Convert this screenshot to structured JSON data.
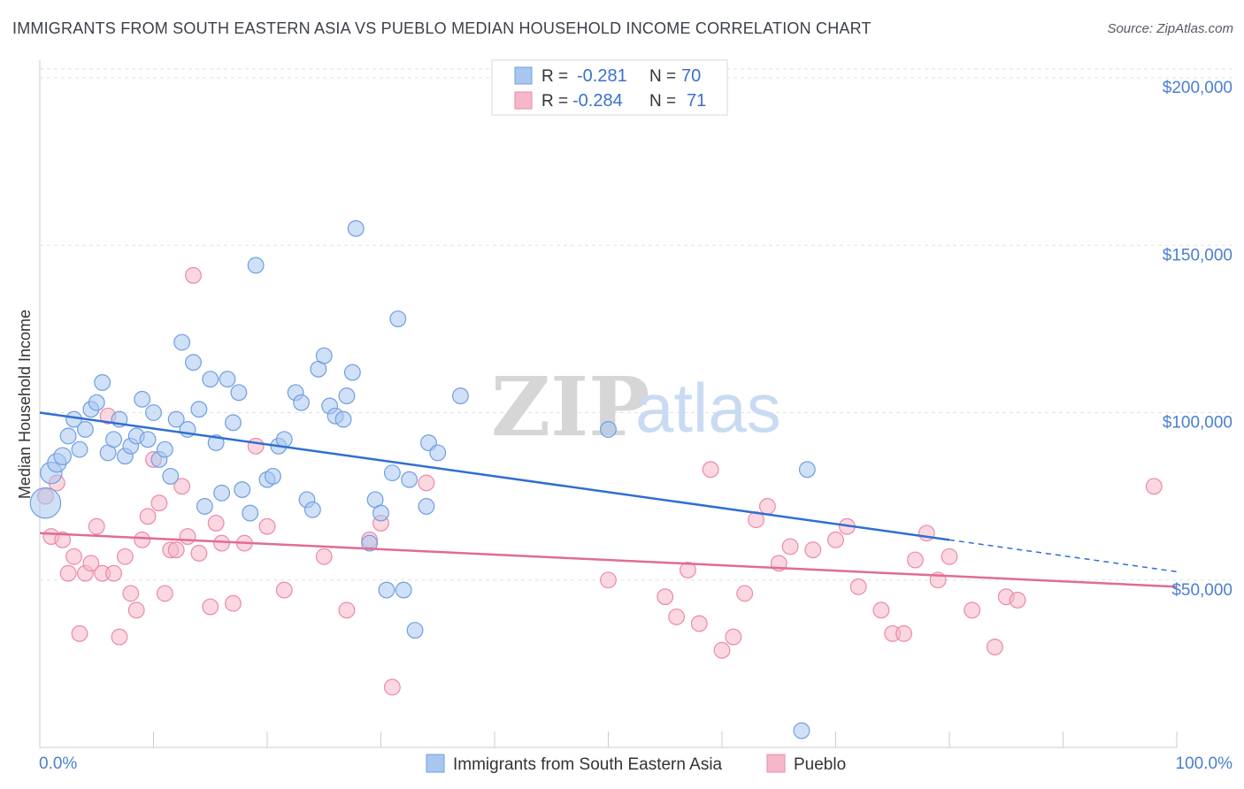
{
  "header": {
    "title": "IMMIGRANTS FROM SOUTH EASTERN ASIA VS PUEBLO MEDIAN HOUSEHOLD INCOME CORRELATION CHART",
    "source": "Source: ZipAtlas.com"
  },
  "watermark": {
    "zip": "ZIP",
    "atlas": "atlas"
  },
  "stats": [
    {
      "r_label": "R =",
      "r_value": "-0.281",
      "n_label": "N =",
      "n_value": "70",
      "color": "#a9c6f0"
    },
    {
      "r_label": "R =",
      "r_value": "-0.284",
      "n_label": "N =",
      "n_value": "71",
      "color": "#f5b7c9"
    }
  ],
  "chart_data": {
    "type": "scatter",
    "title": "IMMIGRANTS FROM SOUTH EASTERN ASIA VS PUEBLO MEDIAN HOUSEHOLD INCOME CORRELATION CHART",
    "xlabel": "",
    "ylabel": "Median Household Income",
    "xlim": [
      0,
      100
    ],
    "ylim": [
      0,
      200000
    ],
    "x_tick_labels": [
      "0.0%",
      "100.0%"
    ],
    "y_ticks": [
      50000,
      100000,
      150000,
      200000
    ],
    "y_tick_labels": [
      "$50,000",
      "$100,000",
      "$150,000",
      "$200,000"
    ],
    "grid": true,
    "legend_position": "bottom",
    "series": [
      {
        "name": "Immigrants from South Eastern Asia",
        "color": "#a9c6f0",
        "stroke": "#6f9fe0",
        "trend_color": "#2f6fd0",
        "trend": {
          "x0": 0,
          "y0": 100000,
          "x1": 80,
          "y1": 62000,
          "dash_x1": 100,
          "dash_y1": 52500
        },
        "points": [
          [
            0.5,
            73000,
            20
          ],
          [
            1,
            82000,
            14
          ],
          [
            1.5,
            85000,
            12
          ],
          [
            2,
            87000,
            11
          ],
          [
            2.5,
            93000,
            10
          ],
          [
            3,
            98000,
            10
          ],
          [
            3.5,
            89000,
            10
          ],
          [
            4,
            95000,
            10
          ],
          [
            4.5,
            101000,
            10
          ],
          [
            5,
            103000,
            10
          ],
          [
            5.5,
            109000,
            10
          ],
          [
            6,
            88000,
            10
          ],
          [
            6.5,
            92000,
            10
          ],
          [
            7,
            98000,
            10
          ],
          [
            7.5,
            87000,
            10
          ],
          [
            8,
            90000,
            10
          ],
          [
            8.5,
            93000,
            10
          ],
          [
            9,
            104000,
            10
          ],
          [
            9.5,
            92000,
            10
          ],
          [
            10,
            100000,
            10
          ],
          [
            10.5,
            86000,
            10
          ],
          [
            11,
            89000,
            10
          ],
          [
            11.5,
            81000,
            10
          ],
          [
            12,
            98000,
            10
          ],
          [
            12.5,
            121000,
            10
          ],
          [
            13,
            95000,
            10
          ],
          [
            13.5,
            115000,
            10
          ],
          [
            14,
            101000,
            10
          ],
          [
            14.5,
            72000,
            10
          ],
          [
            15,
            110000,
            10
          ],
          [
            15.5,
            91000,
            10
          ],
          [
            16,
            76000,
            10
          ],
          [
            16.5,
            110000,
            10
          ],
          [
            17,
            97000,
            10
          ],
          [
            17.5,
            106000,
            10
          ],
          [
            17.8,
            77000,
            10
          ],
          [
            18.5,
            70000,
            10
          ],
          [
            19,
            144000,
            10
          ],
          [
            20,
            80000,
            10
          ],
          [
            20.5,
            81000,
            10
          ],
          [
            21,
            90000,
            10
          ],
          [
            21.5,
            92000,
            10
          ],
          [
            22.5,
            106000,
            10
          ],
          [
            23,
            103000,
            10
          ],
          [
            23.5,
            74000,
            10
          ],
          [
            24,
            71000,
            10
          ],
          [
            24.5,
            113000,
            10
          ],
          [
            25,
            117000,
            10
          ],
          [
            25.5,
            102000,
            10
          ],
          [
            26,
            99000,
            10
          ],
          [
            26.7,
            98000,
            10
          ],
          [
            27,
            105000,
            10
          ],
          [
            27.5,
            112000,
            10
          ],
          [
            27.8,
            155000,
            10
          ],
          [
            29,
            61000,
            10
          ],
          [
            29.5,
            74000,
            10
          ],
          [
            30,
            70000,
            10
          ],
          [
            30.5,
            47000,
            10
          ],
          [
            31,
            82000,
            10
          ],
          [
            31.5,
            128000,
            10
          ],
          [
            32,
            47000,
            10
          ],
          [
            32.5,
            80000,
            10
          ],
          [
            33,
            35000,
            10
          ],
          [
            34,
            72000,
            10
          ],
          [
            34.2,
            91000,
            10
          ],
          [
            35,
            88000,
            10
          ],
          [
            37,
            105000,
            10
          ],
          [
            50,
            95000,
            10
          ],
          [
            67,
            5000,
            10
          ],
          [
            67.5,
            83000,
            10
          ]
        ]
      },
      {
        "name": "Pueblo",
        "color": "#f5b7c9",
        "stroke": "#ec8aa6",
        "trend_color": "#e06c92",
        "trend": {
          "x0": 0,
          "y0": 64000,
          "x1": 100,
          "y1": 48000
        },
        "points": [
          [
            0.5,
            75000,
            10
          ],
          [
            1,
            63000,
            10
          ],
          [
            1.5,
            79000,
            10
          ],
          [
            2,
            62000,
            10
          ],
          [
            2.5,
            52000,
            10
          ],
          [
            3,
            57000,
            10
          ],
          [
            3.5,
            34000,
            10
          ],
          [
            4,
            52000,
            10
          ],
          [
            4.5,
            55000,
            10
          ],
          [
            5,
            66000,
            10
          ],
          [
            5.5,
            52000,
            10
          ],
          [
            6,
            99000,
            10
          ],
          [
            6.5,
            52000,
            10
          ],
          [
            7,
            33000,
            10
          ],
          [
            7.5,
            57000,
            10
          ],
          [
            8,
            46000,
            10
          ],
          [
            8.5,
            41000,
            10
          ],
          [
            9,
            62000,
            10
          ],
          [
            9.5,
            69000,
            10
          ],
          [
            10,
            86000,
            10
          ],
          [
            10.5,
            73000,
            10
          ],
          [
            11,
            46000,
            10
          ],
          [
            11.5,
            59000,
            10
          ],
          [
            12,
            59000,
            10
          ],
          [
            12.5,
            78000,
            10
          ],
          [
            13,
            63000,
            10
          ],
          [
            13.5,
            141000,
            10
          ],
          [
            14,
            58000,
            10
          ],
          [
            15,
            42000,
            10
          ],
          [
            15.5,
            67000,
            10
          ],
          [
            16,
            61000,
            10
          ],
          [
            17,
            43000,
            10
          ],
          [
            18,
            61000,
            10
          ],
          [
            19,
            90000,
            10
          ],
          [
            20,
            66000,
            10
          ],
          [
            21.5,
            47000,
            10
          ],
          [
            25,
            57000,
            10
          ],
          [
            27,
            41000,
            10
          ],
          [
            29,
            62000,
            10
          ],
          [
            30,
            67000,
            10
          ],
          [
            31,
            18000,
            10
          ],
          [
            34,
            79000,
            10
          ],
          [
            50,
            50000,
            10
          ],
          [
            55,
            45000,
            10
          ],
          [
            56,
            39000,
            10
          ],
          [
            57,
            53000,
            10
          ],
          [
            58,
            37000,
            10
          ],
          [
            59,
            83000,
            10
          ],
          [
            60,
            29000,
            10
          ],
          [
            61,
            33000,
            10
          ],
          [
            62,
            46000,
            10
          ],
          [
            63,
            68000,
            10
          ],
          [
            64,
            72000,
            10
          ],
          [
            65,
            55000,
            10
          ],
          [
            66,
            60000,
            10
          ],
          [
            68,
            59000,
            10
          ],
          [
            70,
            62000,
            10
          ],
          [
            71,
            66000,
            10
          ],
          [
            72,
            48000,
            10
          ],
          [
            74,
            41000,
            10
          ],
          [
            75,
            34000,
            10
          ],
          [
            76,
            34000,
            10
          ],
          [
            77,
            56000,
            10
          ],
          [
            78,
            64000,
            10
          ],
          [
            79,
            50000,
            10
          ],
          [
            80,
            57000,
            10
          ],
          [
            82,
            41000,
            10
          ],
          [
            84,
            30000,
            10
          ],
          [
            85,
            45000,
            10
          ],
          [
            86,
            44000,
            10
          ],
          [
            98,
            78000,
            10
          ]
        ]
      }
    ]
  },
  "legend": {
    "items": [
      {
        "label": "Immigrants from South Eastern Asia",
        "color": "#a9c6f0"
      },
      {
        "label": "Pueblo",
        "color": "#f5b7c9"
      }
    ]
  }
}
